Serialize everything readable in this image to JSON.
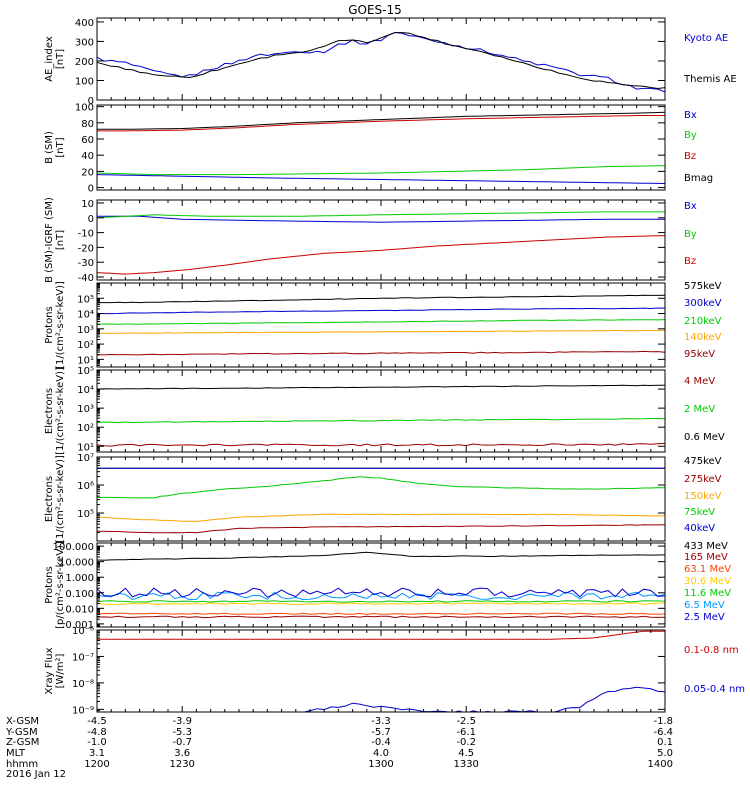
{
  "title": "GOES-15",
  "chart_data": [
    {
      "type": "line",
      "ylabel": [
        "AE_index",
        "[nT]"
      ],
      "y_scale": "linear",
      "ylim": [
        0,
        420
      ],
      "yticks": [
        {
          "v": 0,
          "l": "0"
        },
        {
          "v": 100,
          "l": "100"
        },
        {
          "v": 200,
          "l": "200"
        },
        {
          "v": 300,
          "l": "300"
        },
        {
          "v": 400,
          "l": "400"
        }
      ],
      "series": [
        {
          "name": "Kyoto AE",
          "color": "#0000d0",
          "noise": 0.02,
          "x": [
            1200,
            1204,
            1210,
            1215,
            1220,
            1225,
            1232,
            1240,
            1245,
            1250,
            1255,
            1258,
            1262,
            1266,
            1270,
            1275,
            1280,
            1286,
            1290,
            1295,
            1300,
            1305,
            1310,
            1320,
            1330,
            1340,
            1350,
            1360,
            1370,
            1380,
            1390,
            1400
          ],
          "y": [
            215,
            200,
            190,
            165,
            145,
            130,
            120,
            160,
            180,
            200,
            225,
            230,
            235,
            240,
            255,
            245,
            250,
            290,
            300,
            290,
            310,
            350,
            330,
            300,
            270,
            240,
            200,
            170,
            130,
            110,
            60,
            45
          ]
        },
        {
          "name": "Themis AE",
          "color": "#000000",
          "noise": 0.01,
          "x": [
            1200,
            1210,
            1220,
            1232,
            1245,
            1255,
            1265,
            1275,
            1285,
            1290,
            1295,
            1300,
            1305,
            1310,
            1318,
            1325,
            1335,
            1345,
            1355,
            1365,
            1375,
            1385,
            1395,
            1400
          ],
          "y": [
            190,
            160,
            130,
            115,
            165,
            205,
            235,
            250,
            300,
            310,
            290,
            320,
            350,
            340,
            310,
            280,
            250,
            210,
            170,
            130,
            100,
            80,
            65,
            60
          ]
        }
      ]
    },
    {
      "type": "line",
      "ylabel": [
        "B (SM)",
        "[nT]"
      ],
      "y_scale": "linear",
      "ylim": [
        -3,
        102
      ],
      "yticks": [
        {
          "v": 0,
          "l": "0"
        },
        {
          "v": 20,
          "l": "20"
        },
        {
          "v": 40,
          "l": "40"
        },
        {
          "v": 60,
          "l": "60"
        },
        {
          "v": 80,
          "l": "80"
        },
        {
          "v": 100,
          "l": "100"
        }
      ],
      "series": [
        {
          "name": "Bx",
          "color": "#0000d0",
          "noise": 0,
          "x": [
            1200,
            1230,
            1260,
            1300,
            1340,
            1380,
            1400
          ],
          "y": [
            16,
            14,
            12,
            10,
            8,
            6,
            5
          ]
        },
        {
          "name": "By",
          "color": "#00cc00",
          "noise": 0,
          "x": [
            1200,
            1220,
            1250,
            1300,
            1350,
            1380,
            1400
          ],
          "y": [
            18,
            16,
            16,
            18,
            22,
            26,
            27
          ]
        },
        {
          "name": "Bz",
          "color": "#cc0000",
          "noise": 0,
          "x": [
            1200,
            1210,
            1230,
            1250,
            1270,
            1300,
            1330,
            1360,
            1390,
            1400
          ],
          "y": [
            70,
            70,
            71,
            74,
            78,
            82,
            85,
            87,
            89,
            89
          ]
        },
        {
          "name": "Bmag",
          "color": "#000000",
          "noise": 0,
          "x": [
            1200,
            1210,
            1230,
            1250,
            1270,
            1300,
            1330,
            1360,
            1390,
            1400
          ],
          "y": [
            72,
            72,
            73,
            76,
            80,
            84,
            88,
            90,
            92,
            93
          ]
        }
      ]
    },
    {
      "type": "line",
      "ylabel": [
        "B (SM)-IGRF (SM)",
        "[nT]"
      ],
      "y_scale": "linear",
      "ylim": [
        -42,
        12
      ],
      "yticks": [
        {
          "v": -40,
          "l": "-40"
        },
        {
          "v": -30,
          "l": "-30"
        },
        {
          "v": -20,
          "l": "-20"
        },
        {
          "v": -10,
          "l": "-10"
        },
        {
          "v": 0,
          "l": "0"
        },
        {
          "v": 10,
          "l": "10"
        }
      ],
      "series": [
        {
          "name": "Bx",
          "color": "#0000d0",
          "noise": 0,
          "x": [
            1200,
            1215,
            1230,
            1260,
            1300,
            1340,
            1380,
            1400
          ],
          "y": [
            1,
            1,
            -1,
            -2,
            -3,
            -2,
            -1,
            -1
          ]
        },
        {
          "name": "By",
          "color": "#00cc00",
          "noise": 0,
          "x": [
            1200,
            1220,
            1240,
            1270,
            1300,
            1340,
            1380,
            1400
          ],
          "y": [
            0,
            2,
            1,
            1,
            2,
            3,
            4,
            4
          ]
        },
        {
          "name": "Bz",
          "color": "#cc0000",
          "noise": 0,
          "x": [
            1200,
            1210,
            1220,
            1232,
            1245,
            1260,
            1280,
            1300,
            1320,
            1350,
            1380,
            1400
          ],
          "y": [
            -37,
            -38,
            -37,
            -35,
            -32,
            -28,
            -24,
            -22,
            -19,
            -16,
            -13,
            -12
          ]
        }
      ]
    },
    {
      "type": "line",
      "ylabel": [
        "Protons",
        "[1/(cm²-s-sr-keV)]"
      ],
      "y_scale": "log",
      "ylim": [
        0.5,
        6
      ],
      "yticks": [
        {
          "v": 1,
          "l": "10¹"
        },
        {
          "v": 2,
          "l": "10²"
        },
        {
          "v": 3,
          "l": "10³"
        },
        {
          "v": 4,
          "l": "10⁴"
        },
        {
          "v": 5,
          "l": "10⁵"
        }
      ],
      "series": [
        {
          "name": "575keV",
          "color": "#000000",
          "noise": 0.02,
          "x": [
            1200,
            1240,
            1300,
            1350,
            1400
          ],
          "y": [
            4.7,
            4.8,
            5.0,
            5.1,
            5.2
          ]
        },
        {
          "name": "300keV",
          "color": "#0000d0",
          "noise": 0.015,
          "x": [
            1200,
            1240,
            1300,
            1350,
            1400
          ],
          "y": [
            4.0,
            4.1,
            4.2,
            4.3,
            4.35
          ]
        },
        {
          "name": "210keV",
          "color": "#00cc00",
          "noise": 0.015,
          "x": [
            1200,
            1240,
            1300,
            1350,
            1400
          ],
          "y": [
            3.3,
            3.35,
            3.45,
            3.55,
            3.6
          ]
        },
        {
          "name": "140keV",
          "color": "#ffa500",
          "noise": 0.015,
          "x": [
            1200,
            1240,
            1300,
            1350,
            1400
          ],
          "y": [
            2.7,
            2.75,
            2.8,
            2.85,
            2.9
          ]
        },
        {
          "name": "95keV",
          "color": "#990000",
          "noise": 0.03,
          "x": [
            1200,
            1240,
            1300,
            1350,
            1400
          ],
          "y": [
            1.3,
            1.35,
            1.4,
            1.45,
            1.5
          ]
        }
      ]
    },
    {
      "type": "line",
      "ylabel": [
        "Electrons",
        "[1/(cm²-s-sr-keV)]"
      ],
      "y_scale": "log",
      "ylim": [
        0.7,
        5
      ],
      "yticks": [
        {
          "v": 1,
          "l": "10¹"
        },
        {
          "v": 2,
          "l": "10²"
        },
        {
          "v": 3,
          "l": "10³"
        },
        {
          "v": 4,
          "l": "10⁴"
        },
        {
          "v": 5,
          "l": "10⁵"
        }
      ],
      "series": [
        {
          "name": "4 MeV",
          "color": "#990000",
          "noise": 0.05,
          "x": [
            1200,
            1400
          ],
          "y": [
            1.05,
            1.1
          ]
        },
        {
          "name": "2 MeV",
          "color": "#00cc00",
          "noise": 0.02,
          "x": [
            1200,
            1250,
            1300,
            1350,
            1400
          ],
          "y": [
            2.25,
            2.3,
            2.35,
            2.4,
            2.45
          ]
        },
        {
          "name": "0.6 MeV",
          "color": "#000000",
          "noise": 0.015,
          "x": [
            1200,
            1250,
            1300,
            1350,
            1400
          ],
          "y": [
            4.0,
            4.05,
            4.1,
            4.15,
            4.2
          ]
        }
      ]
    },
    {
      "type": "line",
      "ylabel": [
        "Electrons",
        "[1/(cm²-s-sr-keV)]"
      ],
      "y_scale": "log",
      "ylim": [
        4.0,
        7
      ],
      "yticks": [
        {
          "v": 5,
          "l": "10⁵"
        },
        {
          "v": 6,
          "l": "10⁶"
        },
        {
          "v": 7,
          "l": "10⁷"
        }
      ],
      "series": [
        {
          "name": "475keV",
          "color": "#000000",
          "noise": 0,
          "x": [
            1200,
            1400
          ],
          "y": [
            6.6,
            6.6
          ]
        },
        {
          "name": "275keV",
          "color": "#990000",
          "noise": 0.01,
          "x": [
            1200,
            1220,
            1235,
            1250,
            1280,
            1320,
            1360,
            1400
          ],
          "y": [
            4.35,
            4.3,
            4.3,
            4.45,
            4.5,
            4.52,
            4.55,
            4.58
          ]
        },
        {
          "name": "150keV",
          "color": "#ffa500",
          "noise": 0.01,
          "x": [
            1200,
            1220,
            1235,
            1250,
            1280,
            1320,
            1360,
            1400
          ],
          "y": [
            4.85,
            4.75,
            4.7,
            4.85,
            4.95,
            4.95,
            4.95,
            4.9
          ]
        },
        {
          "name": "75keV",
          "color": "#00cc00",
          "noise": 0.01,
          "x": [
            1200,
            1220,
            1230,
            1245,
            1260,
            1280,
            1292,
            1300,
            1310,
            1325,
            1345,
            1370,
            1400
          ],
          "y": [
            5.55,
            5.55,
            5.7,
            5.85,
            5.95,
            6.15,
            6.3,
            6.25,
            6.1,
            5.95,
            5.9,
            5.85,
            5.9
          ]
        },
        {
          "name": "40keV",
          "color": "#0000d0",
          "noise": 0,
          "x": [
            1200,
            1400
          ],
          "y": [
            6.6,
            6.6
          ]
        }
      ]
    },
    {
      "type": "line",
      "ylabel": [
        "Protons",
        "[p/(cm²-s-sr-keV)]"
      ],
      "y_scale": "log",
      "ylim": [
        -3.2,
        2.2
      ],
      "yticks": [
        {
          "v": -3,
          "l": "0.001"
        },
        {
          "v": -2,
          "l": "0.010"
        },
        {
          "v": -1,
          "l": "0.100"
        },
        {
          "v": 0,
          "l": "1.000"
        },
        {
          "v": 1,
          "l": "10.000"
        },
        {
          "v": 2,
          "l": "100.000"
        }
      ],
      "series": [
        {
          "name": "433 MeV",
          "color": "#000000",
          "noise": 0.02,
          "x": [
            1200,
            1250,
            1280,
            1295,
            1310,
            1340,
            1400
          ],
          "y": [
            1.1,
            1.25,
            1.4,
            1.6,
            1.35,
            1.35,
            1.45
          ]
        },
        {
          "name": "165 MeV",
          "color": "#990000",
          "noise": 0.05,
          "x": [
            1200,
            1400
          ],
          "y": [
            -2.55,
            -2.55
          ]
        },
        {
          "name": "63.1 MeV",
          "color": "#ff4500",
          "noise": 0.04,
          "x": [
            1200,
            1400
          ],
          "y": [
            -2.35,
            -2.35
          ]
        },
        {
          "name": "30.6 MeV",
          "color": "#ffcc00",
          "noise": 0.05,
          "x": [
            1200,
            1400
          ],
          "y": [
            -1.7,
            -1.7
          ]
        },
        {
          "name": "11.6 MeV",
          "color": "#00cc00",
          "noise": 0.05,
          "x": [
            1200,
            1400
          ],
          "y": [
            -1.55,
            -1.55
          ]
        },
        {
          "name": "6.5 MeV",
          "color": "#0099ff",
          "noise": 0.25,
          "x": [
            1200,
            1400
          ],
          "y": [
            -1.2,
            -1.2
          ]
        },
        {
          "name": "2.5 MeV",
          "color": "#0000d0",
          "noise": 0.3,
          "x": [
            1200,
            1400
          ],
          "y": [
            -1.0,
            -1.0
          ]
        }
      ]
    },
    {
      "type": "line",
      "ylabel": [
        "Xray Flux",
        "[W/m²]"
      ],
      "y_scale": "log",
      "ylim": [
        -9.1,
        -6
      ],
      "yticks": [
        {
          "v": -9,
          "l": "10⁻⁹"
        },
        {
          "v": -8,
          "l": "10⁻⁸"
        },
        {
          "v": -7,
          "l": "10⁻⁷"
        },
        {
          "v": -6,
          "l": "10⁻⁶"
        }
      ],
      "series": [
        {
          "name": "0.1-0.8 nm",
          "color": "#cc0000",
          "noise": 0,
          "x": [
            1200,
            1240,
            1300,
            1360,
            1375,
            1385,
            1392,
            1400
          ],
          "y": [
            -6.35,
            -6.35,
            -6.35,
            -6.35,
            -6.3,
            -6.15,
            -6.05,
            -6.05
          ]
        },
        {
          "name": "0.05-0.4 nm",
          "color": "#0000d0",
          "noise": 0.05,
          "x": [
            1270,
            1280,
            1290,
            1300,
            1310,
            1320,
            1330,
            1350,
            1360,
            1370,
            1378,
            1385,
            1392,
            1400
          ],
          "y": [
            -9.1,
            -9.0,
            -8.8,
            -8.9,
            -9.0,
            -9.1,
            -9.1,
            -9.1,
            -9.1,
            -8.9,
            -8.4,
            -8.2,
            -8.2,
            -8.35
          ]
        }
      ]
    }
  ],
  "x_axis": {
    "range": [
      1200,
      1400
    ],
    "minor_step": 5,
    "ticks": [
      1200,
      1230,
      1300,
      1330,
      1400
    ],
    "row_labels": [
      "X-GSM",
      "Y-GSM",
      "Z-GSM",
      "MLT",
      "hhmm",
      "2016 Jan 12"
    ],
    "rows": [
      [
        "-4.5",
        "-3.9",
        "-3.3",
        "-2.5",
        "-1.8"
      ],
      [
        "-4.8",
        "-5.3",
        "-5.7",
        "-6.1",
        "-6.4"
      ],
      [
        "-1.0",
        "-0.7",
        "-0.4",
        "-0.2",
        "0.1"
      ],
      [
        "3.1",
        "3.6",
        "4.0",
        "4.5",
        "5.0"
      ],
      [
        "1200",
        "1230",
        "1300",
        "1330",
        "1400"
      ]
    ]
  },
  "colors": {
    "frame": "#000000",
    "background": "#ffffff"
  }
}
